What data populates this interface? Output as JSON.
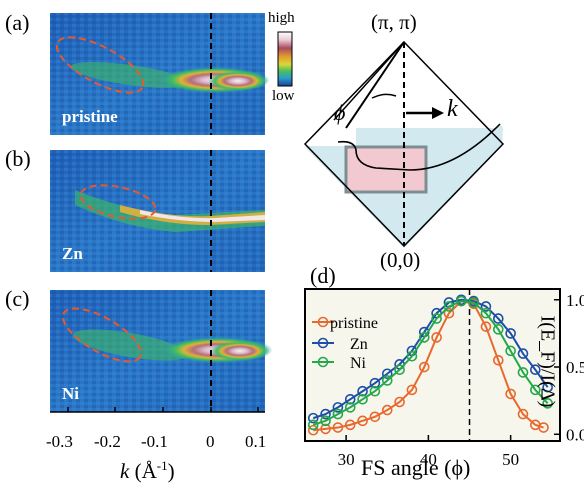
{
  "panels": {
    "a": {
      "letter": "(a)",
      "sample": "pristine"
    },
    "b": {
      "letter": "(b)",
      "sample": "Zn"
    },
    "c": {
      "letter": "(c)",
      "sample": "Ni"
    }
  },
  "colorbar": {
    "high": "high",
    "low": "low"
  },
  "k_axis": {
    "ticks": [
      "-0.3",
      "-0.2",
      "-0.1",
      "0",
      "0.1"
    ],
    "label_k": "k",
    "label_unit": "(Å",
    "label_exp": "-1",
    "label_close": ")"
  },
  "brillouin": {
    "top_label": "(π, π)",
    "bottom_label": "(0,0)",
    "phi_label": "ϕ",
    "k_label": "k"
  },
  "panel_d": {
    "letter": "(d)"
  },
  "chart_data": {
    "type": "scatter",
    "xlabel": "FS angle (ϕ)",
    "ylabel": "I(E_F)/I(Δ)",
    "xlim": [
      25,
      56
    ],
    "ylim": [
      -0.05,
      1.08
    ],
    "xticks": [
      "30",
      "40",
      "50"
    ],
    "yticks": [
      "0.0",
      "0.5",
      "1.0"
    ],
    "legend_position": "left",
    "vline_x": 45,
    "series": [
      {
        "name": "pristine",
        "color": "#e8692e",
        "x": [
          26,
          27.5,
          29,
          30.5,
          32,
          33.5,
          35,
          36.5,
          38,
          39.5,
          41,
          42.5,
          44,
          45.5,
          47,
          48.5,
          50,
          51.5,
          53,
          54
        ],
        "y": [
          0.03,
          0.04,
          0.05,
          0.07,
          0.1,
          0.13,
          0.18,
          0.24,
          0.33,
          0.5,
          0.72,
          0.9,
          0.99,
          0.97,
          0.8,
          0.55,
          0.3,
          0.15,
          0.07,
          0.05
        ]
      },
      {
        "name": "Zn",
        "color": "#1e4fa8",
        "x": [
          26,
          27.5,
          29,
          30.5,
          32,
          33.5,
          35,
          36.5,
          38,
          39.5,
          41,
          42.5,
          44,
          45.5,
          47,
          48.5,
          50,
          51.5,
          53,
          54.5
        ],
        "y": [
          0.12,
          0.15,
          0.2,
          0.26,
          0.32,
          0.38,
          0.45,
          0.52,
          0.62,
          0.76,
          0.9,
          0.98,
          1.0,
          0.99,
          0.95,
          0.86,
          0.75,
          0.6,
          0.48,
          0.35
        ]
      },
      {
        "name": "Ni",
        "color": "#25a84a",
        "x": [
          26,
          27.5,
          29,
          30.5,
          32,
          33.5,
          35,
          36.5,
          38,
          39.5,
          41,
          42.5,
          44,
          45.5,
          47,
          48.5,
          50,
          51.5,
          53,
          54.5
        ],
        "y": [
          0.07,
          0.1,
          0.15,
          0.2,
          0.26,
          0.32,
          0.4,
          0.48,
          0.58,
          0.72,
          0.86,
          0.95,
          0.99,
          0.98,
          0.9,
          0.78,
          0.62,
          0.46,
          0.33,
          0.23
        ]
      }
    ]
  }
}
